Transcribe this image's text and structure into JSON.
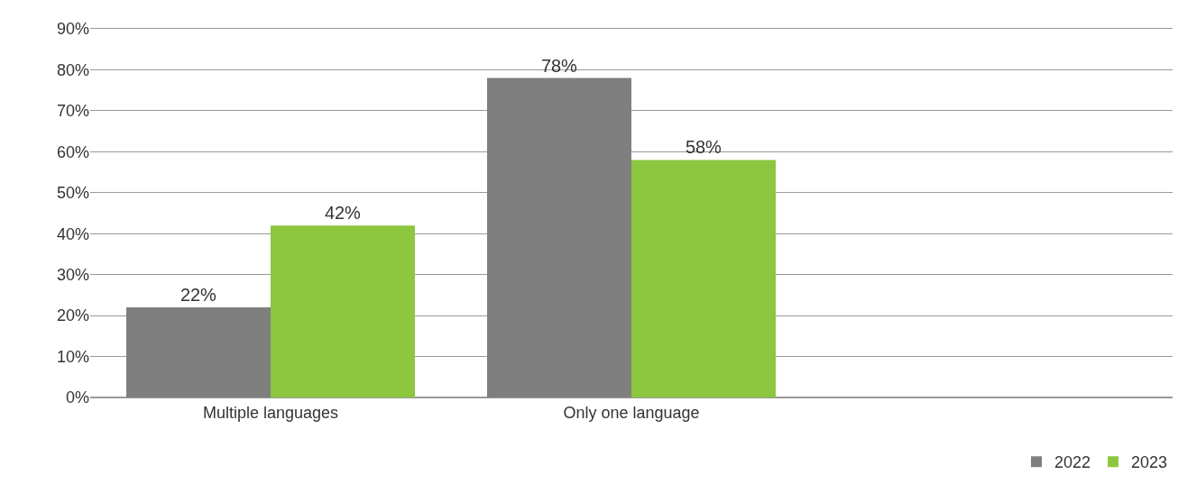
{
  "chart_data": {
    "type": "bar",
    "categories": [
      "Multiple languages",
      "Only one language",
      null
    ],
    "series": [
      {
        "name": "2022",
        "color": "#7f7f7f",
        "values": [
          22,
          78,
          null
        ],
        "value_labels": [
          "22%",
          "78%",
          null
        ]
      },
      {
        "name": "2023",
        "color": "#8dc63f",
        "values": [
          42,
          58,
          null
        ],
        "value_labels": [
          "42%",
          "58%",
          null
        ]
      }
    ],
    "ylim": [
      0,
      90
    ],
    "yticks": [
      {
        "value": 0,
        "label": "0%"
      },
      {
        "value": 10,
        "label": "10%"
      },
      {
        "value": 20,
        "label": "20%"
      },
      {
        "value": 30,
        "label": "30%"
      },
      {
        "value": 40,
        "label": "40%"
      },
      {
        "value": 50,
        "label": "50%"
      },
      {
        "value": 60,
        "label": "60%"
      },
      {
        "value": 70,
        "label": "70%"
      },
      {
        "value": 80,
        "label": "80%"
      },
      {
        "value": 90,
        "label": "90%"
      }
    ],
    "grid": "y",
    "legend": "bottom right"
  }
}
